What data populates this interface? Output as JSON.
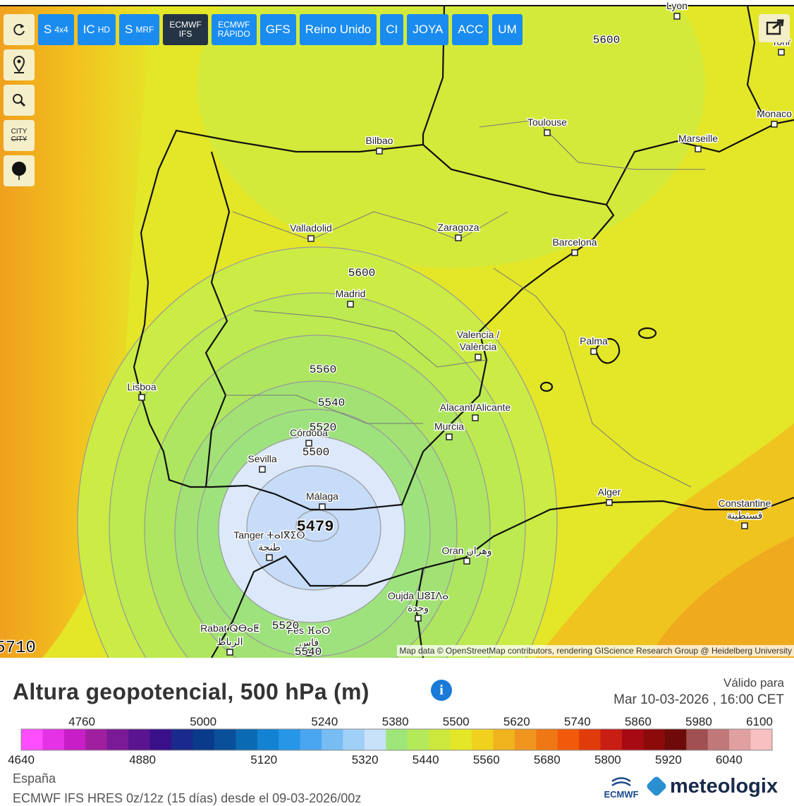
{
  "toolbar": {
    "buttons": [
      {
        "label": "S",
        "sub": "4x4"
      },
      {
        "label": "IC",
        "sub": "HD"
      },
      {
        "label": "S",
        "sub": "MRF"
      },
      {
        "label": "ECMWF",
        "sub": "IFS",
        "stacked": true,
        "active": true
      },
      {
        "label": "ECMWF",
        "sub": "RÁPIDO",
        "stacked": true
      },
      {
        "label": "GFS"
      },
      {
        "label": "Reino Unido"
      },
      {
        "label": "CI"
      },
      {
        "label": "JOYA"
      },
      {
        "label": "ACC"
      },
      {
        "label": "UM"
      }
    ],
    "city_toggle": [
      "CITY",
      "CITY"
    ]
  },
  "map": {
    "cities": [
      "Lyon",
      "Torir",
      "Toulouse",
      "Monaco",
      "Marseille",
      "Bilbao",
      "Valladolid",
      "Zaragoza",
      "Barcelona",
      "Madrid",
      "Valencia /",
      "València",
      "Palma",
      "Lisboa",
      "Alacant/Alicante",
      "Murcia",
      "Córdoba",
      "Sevilla",
      "Málaga",
      "Alger",
      "Constantine",
      "قسنطينة",
      "Tanger ⵜⴰⵏⴳⵉⵔ",
      "طنجة",
      "Oran وهران",
      "Oujda ⵡⵓⵊⴷⴰ",
      "وجدة",
      "Rabat ⵕⴱⴰⵟ",
      "الرباط",
      "Fès ⴼⴰⵙ",
      "فاس"
    ],
    "contour_labels": [
      5600,
      5600,
      5560,
      5540,
      5520,
      5500,
      5479,
      5520,
      5540,
      5710
    ],
    "attribution": "Map data © OpenStreetMap contributors, rendering GIScience Research Group @ Heidelberg University"
  },
  "legend": {
    "title": "Altura geopotencial, 500 hPa (m)",
    "valid_label": "Válido para",
    "valid_time": "Mar 10-03-2026 , 16:00 CET",
    "lim": [
      4640,
      6100
    ],
    "ticks_top": [
      4760,
      5000,
      5240,
      5380,
      5500,
      5620,
      5740,
      5860,
      5980,
      6100
    ],
    "ticks_bottom": [
      4640,
      4880,
      5120,
      5320,
      5440,
      5560,
      5680,
      5800,
      5920,
      6040
    ],
    "colors": [
      "#ff4dff",
      "#e632e6",
      "#c81ec8",
      "#a01ea0",
      "#7a1a96",
      "#5a1490",
      "#3a0f8a",
      "#1a2a8c",
      "#0a3a8a",
      "#0a4f9a",
      "#0a6ab4",
      "#1482d2",
      "#2896e6",
      "#4aa6f0",
      "#78bcf4",
      "#a0d0f8",
      "#c8e2fa",
      "#9ee67a",
      "#b4ea5a",
      "#cce83c",
      "#e4e628",
      "#f0d21e",
      "#f0b41e",
      "#f0961e",
      "#f07814",
      "#f05a0a",
      "#e03c0a",
      "#c81e14",
      "#a80a14",
      "#8c0a0a",
      "#6e0a0a",
      "#a05050",
      "#c07878",
      "#e0a0a0",
      "#f8c0c0"
    ]
  },
  "footer": {
    "region": "España",
    "model": "ECMWF IFS HRES 0z/12z (15 días) desde el 09-03-2026/00z",
    "logos": [
      "ECMWF",
      "meteologix"
    ]
  }
}
